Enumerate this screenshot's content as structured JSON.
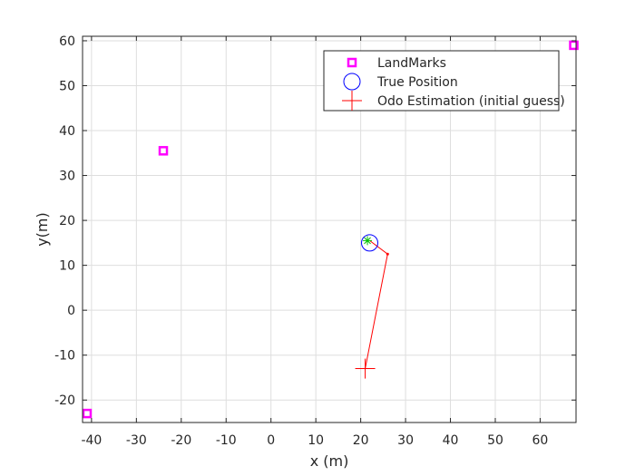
{
  "chart_data": {
    "type": "scatter",
    "title": "",
    "xlabel": "x (m)",
    "ylabel": "y(m)",
    "xlim": [
      -42,
      68
    ],
    "ylim": [
      -25,
      61
    ],
    "xticks": [
      -40,
      -30,
      -20,
      -10,
      0,
      10,
      20,
      30,
      40,
      50,
      60
    ],
    "yticks": [
      -20,
      -10,
      0,
      10,
      20,
      30,
      40,
      50,
      60
    ],
    "grid": true,
    "legend_position": "top-right",
    "series": [
      {
        "name": "LandMarks",
        "marker": "square",
        "color": "#ff00ff",
        "points": [
          [
            -41,
            -23
          ],
          [
            -24,
            35.5
          ],
          [
            67.5,
            59
          ]
        ]
      },
      {
        "name": "True Position",
        "marker": "circle",
        "color": "#0000ff",
        "points": [
          [
            22,
            15
          ]
        ]
      },
      {
        "name": "Odo Estimation (initial guess)",
        "marker": "plus",
        "color": "#ff0000",
        "points": [
          [
            21,
            -13
          ]
        ]
      }
    ],
    "path": {
      "color": "#ff0000",
      "points": [
        [
          21,
          -13
        ],
        [
          26,
          12.5
        ],
        [
          22,
          15.5
        ]
      ]
    },
    "current_estimate": {
      "marker": "asterisk",
      "color": "#00c000",
      "point": [
        21.5,
        15.5
      ]
    }
  }
}
